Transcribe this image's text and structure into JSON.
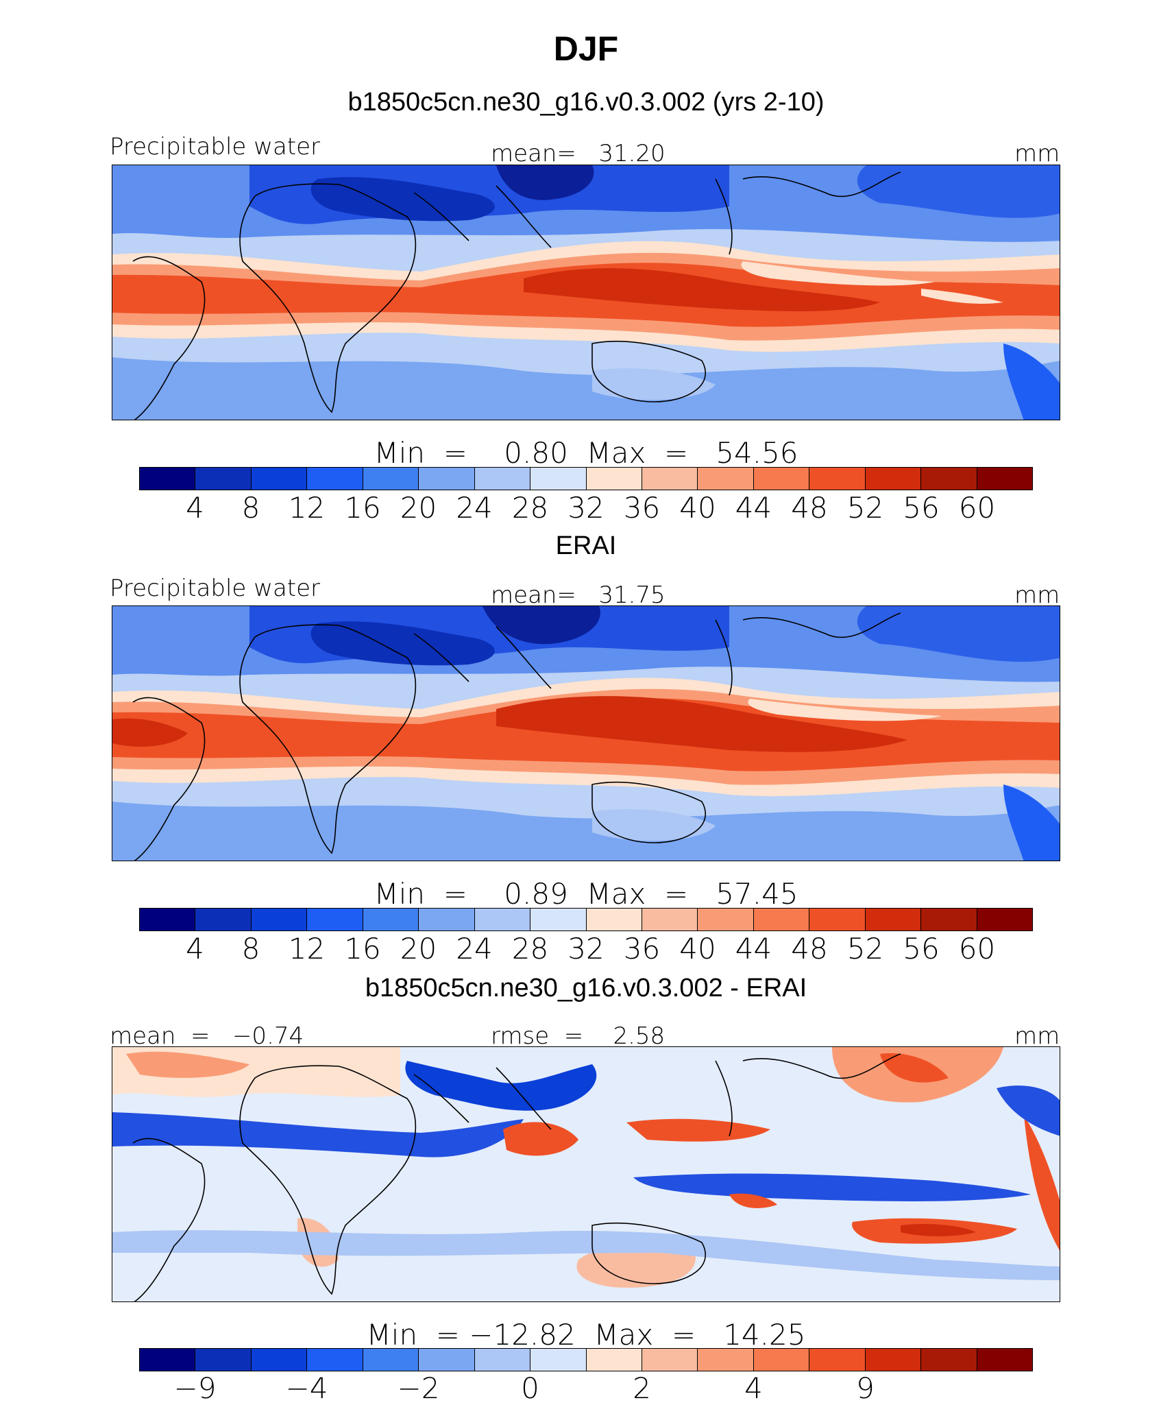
{
  "header": {
    "title": "DJF"
  },
  "palette": [
    "#00007f",
    "#0c2fb8",
    "#0a3fd8",
    "#1e5ef5",
    "#3f80f0",
    "#7aa6f2",
    "#acc6f5",
    "#d6e5fa",
    "#fde3d0",
    "#f9bca1",
    "#f99c76",
    "#f67a4e",
    "#ef5126",
    "#d12d0c",
    "#a81a06",
    "#840000"
  ],
  "chart_data": [
    {
      "type": "heatmap",
      "panel_title": "b1850c5cn.ne30_g16.v0.3.002 (yrs 2-10)",
      "left_label": "Precipitable water",
      "center_label": "mean=   31.20",
      "right_label": "mm",
      "mean": 31.2,
      "min": 0.8,
      "max": 54.56,
      "minmax_text": "Min  =    0.80  Max  =   54.56",
      "colorbar_ticks": [
        "4",
        "8",
        "12",
        "16",
        "20",
        "24",
        "28",
        "32",
        "36",
        "40",
        "44",
        "48",
        "52",
        "56",
        "60"
      ]
    },
    {
      "type": "heatmap",
      "panel_title": "ERAI",
      "left_label": "Precipitable water",
      "center_label": "mean=   31.75",
      "right_label": "mm",
      "mean": 31.75,
      "min": 0.89,
      "max": 57.45,
      "minmax_text": "Min  =    0.89  Max  =   57.45",
      "colorbar_ticks": [
        "4",
        "8",
        "12",
        "16",
        "20",
        "24",
        "28",
        "32",
        "36",
        "40",
        "44",
        "48",
        "52",
        "56",
        "60"
      ]
    },
    {
      "type": "heatmap",
      "panel_title": "b1850c5cn.ne30_g16.v0.3.002 - ERAI",
      "left_label": "mean  =   −0.74",
      "center_label": "rmse  =    2.58",
      "right_label": "mm",
      "mean": -0.74,
      "rmse": 2.58,
      "min": -12.82,
      "max": 14.25,
      "minmax_text": "Min  = −12.82  Max  =   14.25",
      "colorbar_ticks": [
        "−9",
        "",
        "−4",
        "",
        "−2",
        "",
        "0",
        "",
        "2",
        "",
        "4",
        "",
        "9",
        ""
      ]
    }
  ]
}
